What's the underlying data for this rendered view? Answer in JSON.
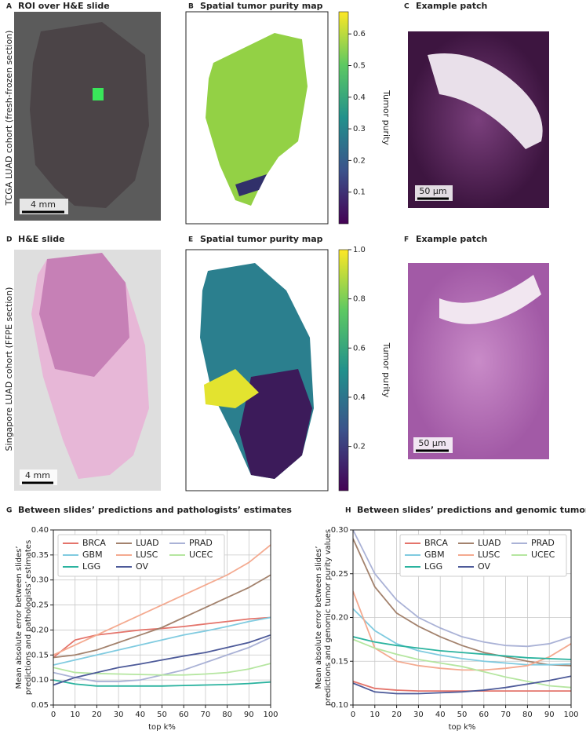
{
  "row_labels": [
    "TCGA LUAD cohort (fresh-frozen section)",
    "Singapore LUAD cohort (FFPE section)"
  ],
  "panels": [
    {
      "letter": "A",
      "title": "ROI over H&E slide",
      "scale_bar": "4 mm"
    },
    {
      "letter": "B",
      "title": "Spatial tumor purity map"
    },
    {
      "letter": "C",
      "title": "Example patch",
      "scale_bar": "50 μm"
    },
    {
      "letter": "D",
      "title": "H&E slide",
      "scale_bar": "4 mm"
    },
    {
      "letter": "E",
      "title": "Spatial tumor purity map"
    },
    {
      "letter": "F",
      "title": "Example patch",
      "scale_bar": "50 μm"
    }
  ],
  "colorbars": [
    {
      "label": "Tumor purity",
      "ylim": [
        0,
        0.67
      ],
      "yticks": [
        0.1,
        0.2,
        0.3,
        0.4,
        0.5,
        0.6
      ]
    },
    {
      "label": "Tumor purity",
      "ylim": [
        0.02,
        1.0
      ],
      "yticks": [
        0.2,
        0.4,
        0.6,
        0.8,
        {
          "value": 1.0,
          "label": "1.0"
        }
      ]
    }
  ],
  "chart_data": [
    {
      "type": "line",
      "letter": "G",
      "title": "Between slides’ predictions and pathologists’ estimates",
      "xlabel": "top k%",
      "ylabel": [
        "Mean absolute error between slides’",
        "predictions and pathologists’ estimates"
      ],
      "x": [
        0,
        10,
        20,
        30,
        40,
        50,
        60,
        70,
        80,
        90,
        100
      ],
      "xlim": [
        0,
        100
      ],
      "xticks": [
        0,
        10,
        20,
        30,
        40,
        50,
        60,
        70,
        80,
        90,
        100
      ],
      "ylim": [
        0.05,
        0.4
      ],
      "yticks": [
        0.05,
        {
          "value": 0.1,
          "label": "0.10"
        },
        0.15,
        {
          "value": 0.2,
          "label": "0.20"
        },
        0.25,
        {
          "value": 0.3,
          "label": "0.30"
        },
        0.35,
        {
          "value": 0.4,
          "label": "0.40"
        }
      ],
      "grid": true,
      "legend": "upper left",
      "series": [
        {
          "name": "BRCA",
          "color": "#e4746b",
          "values": [
            0.145,
            0.18,
            0.19,
            0.195,
            0.2,
            0.203,
            0.207,
            0.212,
            0.217,
            0.222,
            0.225
          ]
        },
        {
          "name": "LUAD",
          "color": "#a3826d",
          "values": [
            0.145,
            0.15,
            0.16,
            0.175,
            0.19,
            0.205,
            0.225,
            0.245,
            0.265,
            0.285,
            0.31
          ]
        },
        {
          "name": "PRAD",
          "color": "#aab2d6",
          "values": [
            0.115,
            0.105,
            0.097,
            0.097,
            0.1,
            0.11,
            0.12,
            0.135,
            0.15,
            0.165,
            0.185
          ]
        },
        {
          "name": "GBM",
          "color": "#80cbe0",
          "values": [
            0.13,
            0.14,
            0.15,
            0.16,
            0.17,
            0.18,
            0.19,
            0.198,
            0.207,
            0.217,
            0.225
          ]
        },
        {
          "name": "LUSC",
          "color": "#f4aa90",
          "values": [
            0.15,
            0.17,
            0.19,
            0.21,
            0.23,
            0.25,
            0.27,
            0.29,
            0.31,
            0.335,
            0.37
          ]
        },
        {
          "name": "UCEC",
          "color": "#b5e6a0",
          "values": [
            0.125,
            0.115,
            0.113,
            0.112,
            0.111,
            0.11,
            0.11,
            0.112,
            0.115,
            0.122,
            0.133
          ]
        },
        {
          "name": "LGG",
          "color": "#2bb39f",
          "values": [
            0.1,
            0.092,
            0.088,
            0.088,
            0.088,
            0.088,
            0.089,
            0.09,
            0.091,
            0.093,
            0.096
          ]
        },
        {
          "name": "OV",
          "color": "#4d5a99",
          "values": [
            0.09,
            0.105,
            0.115,
            0.125,
            0.132,
            0.14,
            0.148,
            0.155,
            0.165,
            0.175,
            0.19
          ]
        }
      ]
    },
    {
      "type": "line",
      "letter": "H",
      "title": "Between slides’ predictions and genomic tumor purity values",
      "xlabel": "top k%",
      "ylabel": [
        "Mean absolute error between slides’",
        "predictions and genomic tumor purity values"
      ],
      "x": [
        0,
        10,
        20,
        30,
        40,
        50,
        60,
        70,
        80,
        90,
        100
      ],
      "xlim": [
        0,
        100
      ],
      "xticks": [
        0,
        10,
        20,
        30,
        40,
        50,
        60,
        70,
        80,
        90,
        100
      ],
      "ylim": [
        0.1,
        0.3
      ],
      "yticks": [
        {
          "value": 0.1,
          "label": "0.10"
        },
        0.15,
        {
          "value": 0.2,
          "label": "0.20"
        },
        0.25,
        {
          "value": 0.3,
          "label": "0.30"
        }
      ],
      "grid": true,
      "legend": "upper right",
      "series": [
        {
          "name": "BRCA",
          "color": "#e4746b",
          "values": [
            0.127,
            0.119,
            0.117,
            0.116,
            0.116,
            0.116,
            0.116,
            0.116,
            0.116,
            0.116,
            0.116
          ]
        },
        {
          "name": "LUAD",
          "color": "#a3826d",
          "values": [
            0.29,
            0.235,
            0.205,
            0.19,
            0.178,
            0.168,
            0.16,
            0.155,
            0.15,
            0.146,
            0.145
          ]
        },
        {
          "name": "PRAD",
          "color": "#aab2d6",
          "values": [
            0.3,
            0.25,
            0.22,
            0.2,
            0.188,
            0.178,
            0.172,
            0.168,
            0.167,
            0.17,
            0.178
          ]
        },
        {
          "name": "GBM",
          "color": "#80cbe0",
          "values": [
            0.21,
            0.185,
            0.17,
            0.162,
            0.157,
            0.153,
            0.15,
            0.148,
            0.146,
            0.146,
            0.147
          ]
        },
        {
          "name": "LUSC",
          "color": "#f4aa90",
          "values": [
            0.23,
            0.165,
            0.15,
            0.145,
            0.142,
            0.14,
            0.14,
            0.142,
            0.145,
            0.155,
            0.17
          ]
        },
        {
          "name": "UCEC",
          "color": "#b5e6a0",
          "values": [
            0.175,
            0.165,
            0.158,
            0.152,
            0.148,
            0.144,
            0.138,
            0.132,
            0.127,
            0.122,
            0.12
          ]
        },
        {
          "name": "LGG",
          "color": "#2bb39f",
          "values": [
            0.178,
            0.172,
            0.168,
            0.165,
            0.162,
            0.16,
            0.158,
            0.156,
            0.154,
            0.153,
            0.152
          ]
        },
        {
          "name": "OV",
          "color": "#4d5a99",
          "values": [
            0.125,
            0.115,
            0.113,
            0.113,
            0.114,
            0.115,
            0.117,
            0.12,
            0.124,
            0.128,
            0.133
          ]
        }
      ]
    }
  ]
}
